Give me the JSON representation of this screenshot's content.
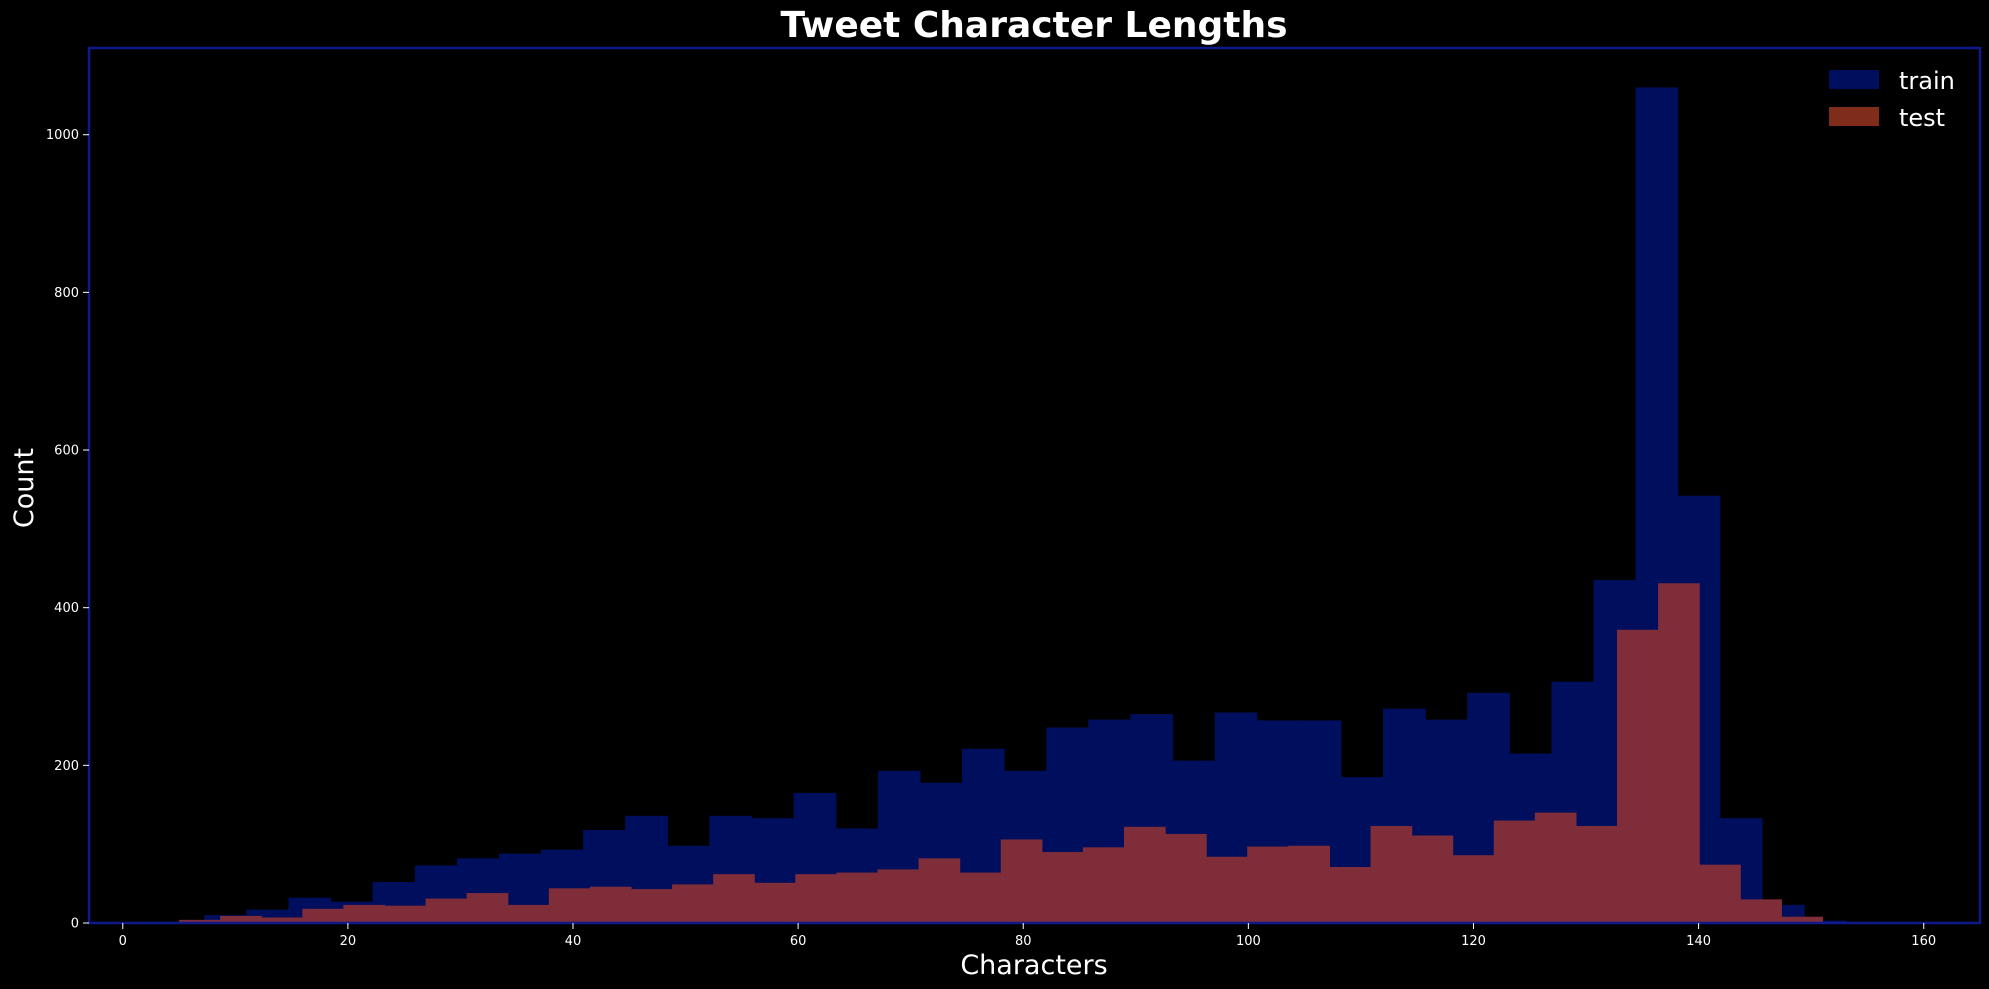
{
  "chart_data": {
    "type": "bar",
    "title": "Tweet Character Lengths",
    "xlabel": "Characters",
    "ylabel": "Count",
    "xlim": [
      -3,
      165
    ],
    "ylim": [
      0,
      1110
    ],
    "x_ticks": [
      0,
      20,
      40,
      60,
      80,
      100,
      120,
      140,
      160
    ],
    "y_ticks": [
      0,
      200,
      400,
      600,
      800,
      1000
    ],
    "grid": false,
    "legend_position": "top-right",
    "colors": {
      "background": "#000000",
      "frame": "#0e1a8c",
      "text": "#ffffff"
    },
    "series": [
      {
        "name": "train",
        "color": "#000f5d",
        "legend_color": "#000f5d",
        "bin_start": 3.5,
        "bin_width": 3.74,
        "values": [
          1,
          10,
          17,
          32,
          27,
          52,
          73,
          82,
          88,
          93,
          118,
          136,
          98,
          136,
          133,
          165,
          120,
          193,
          178,
          221,
          193,
          248,
          258,
          265,
          206,
          267,
          257,
          257,
          185,
          272,
          258,
          292,
          215,
          306,
          435,
          1060,
          542,
          133,
          23,
          3,
          1
        ]
      },
      {
        "name": "test",
        "color": "#7f2d39",
        "legend_color": "#802c1a",
        "bin_start": 5,
        "bin_width": 3.65,
        "values": [
          4,
          9,
          7,
          18,
          23,
          22,
          31,
          38,
          23,
          44,
          46,
          43,
          49,
          62,
          51,
          62,
          64,
          68,
          82,
          64,
          106,
          90,
          96,
          122,
          113,
          84,
          97,
          98,
          71,
          123,
          111,
          86,
          130,
          140,
          123,
          372,
          431,
          74,
          30,
          8,
          1
        ]
      }
    ]
  }
}
